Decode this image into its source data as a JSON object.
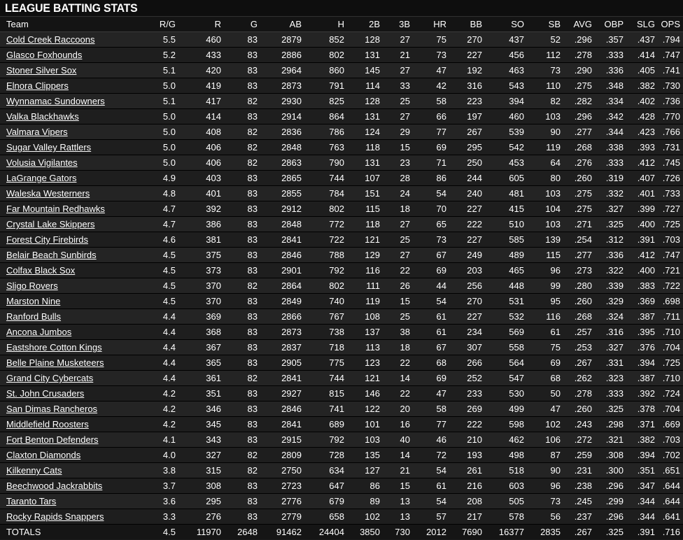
{
  "page": {
    "title": "LEAGUE BATTING STATS"
  },
  "table": {
    "columns": [
      "Team",
      "R/G",
      "R",
      "G",
      "AB",
      "H",
      "2B",
      "3B",
      "HR",
      "BB",
      "SO",
      "SB",
      "AVG",
      "OBP",
      "SLG",
      "OPS"
    ],
    "rows": [
      [
        "Cold Creek Raccoons",
        "5.5",
        "460",
        "83",
        "2879",
        "852",
        "128",
        "27",
        "75",
        "270",
        "437",
        "52",
        ".296",
        ".357",
        ".437",
        ".794"
      ],
      [
        "Glasco Foxhounds",
        "5.2",
        "433",
        "83",
        "2886",
        "802",
        "131",
        "21",
        "73",
        "227",
        "456",
        "112",
        ".278",
        ".333",
        ".414",
        ".747"
      ],
      [
        "Stoner Silver Sox",
        "5.1",
        "420",
        "83",
        "2964",
        "860",
        "145",
        "27",
        "47",
        "192",
        "463",
        "73",
        ".290",
        ".336",
        ".405",
        ".741"
      ],
      [
        "Elnora Clippers",
        "5.0",
        "419",
        "83",
        "2873",
        "791",
        "114",
        "33",
        "42",
        "316",
        "543",
        "110",
        ".275",
        ".348",
        ".382",
        ".730"
      ],
      [
        "Wynnamac Sundowners",
        "5.1",
        "417",
        "82",
        "2930",
        "825",
        "128",
        "25",
        "58",
        "223",
        "394",
        "82",
        ".282",
        ".334",
        ".402",
        ".736"
      ],
      [
        "Valka Blackhawks",
        "5.0",
        "414",
        "83",
        "2914",
        "864",
        "131",
        "27",
        "66",
        "197",
        "460",
        "103",
        ".296",
        ".342",
        ".428",
        ".770"
      ],
      [
        "Valmara Vipers",
        "5.0",
        "408",
        "82",
        "2836",
        "786",
        "124",
        "29",
        "77",
        "267",
        "539",
        "90",
        ".277",
        ".344",
        ".423",
        ".766"
      ],
      [
        "Sugar Valley Rattlers",
        "5.0",
        "406",
        "82",
        "2848",
        "763",
        "118",
        "15",
        "69",
        "295",
        "542",
        "119",
        ".268",
        ".338",
        ".393",
        ".731"
      ],
      [
        "Volusia Vigilantes",
        "5.0",
        "406",
        "82",
        "2863",
        "790",
        "131",
        "23",
        "71",
        "250",
        "453",
        "64",
        ".276",
        ".333",
        ".412",
        ".745"
      ],
      [
        "LaGrange Gators",
        "4.9",
        "403",
        "83",
        "2865",
        "744",
        "107",
        "28",
        "86",
        "244",
        "605",
        "80",
        ".260",
        ".319",
        ".407",
        ".726"
      ],
      [
        "Waleska Westerners",
        "4.8",
        "401",
        "83",
        "2855",
        "784",
        "151",
        "24",
        "54",
        "240",
        "481",
        "103",
        ".275",
        ".332",
        ".401",
        ".733"
      ],
      [
        "Far Mountain Redhawks",
        "4.7",
        "392",
        "83",
        "2912",
        "802",
        "115",
        "18",
        "70",
        "227",
        "415",
        "104",
        ".275",
        ".327",
        ".399",
        ".727"
      ],
      [
        "Crystal Lake Skippers",
        "4.7",
        "386",
        "83",
        "2848",
        "772",
        "118",
        "27",
        "65",
        "222",
        "510",
        "103",
        ".271",
        ".325",
        ".400",
        ".725"
      ],
      [
        "Forest City Firebirds",
        "4.6",
        "381",
        "83",
        "2841",
        "722",
        "121",
        "25",
        "73",
        "227",
        "585",
        "139",
        ".254",
        ".312",
        ".391",
        ".703"
      ],
      [
        "Belair Beach Sunbirds",
        "4.5",
        "375",
        "83",
        "2846",
        "788",
        "129",
        "27",
        "67",
        "249",
        "489",
        "115",
        ".277",
        ".336",
        ".412",
        ".747"
      ],
      [
        "Colfax Black Sox",
        "4.5",
        "373",
        "83",
        "2901",
        "792",
        "116",
        "22",
        "69",
        "203",
        "465",
        "96",
        ".273",
        ".322",
        ".400",
        ".721"
      ],
      [
        "Sligo Rovers",
        "4.5",
        "370",
        "82",
        "2864",
        "802",
        "111",
        "26",
        "44",
        "256",
        "448",
        "99",
        ".280",
        ".339",
        ".383",
        ".722"
      ],
      [
        "Marston Nine",
        "4.5",
        "370",
        "83",
        "2849",
        "740",
        "119",
        "15",
        "54",
        "270",
        "531",
        "95",
        ".260",
        ".329",
        ".369",
        ".698"
      ],
      [
        "Ranford Bulls",
        "4.4",
        "369",
        "83",
        "2866",
        "767",
        "108",
        "25",
        "61",
        "227",
        "532",
        "116",
        ".268",
        ".324",
        ".387",
        ".711"
      ],
      [
        "Ancona Jumbos",
        "4.4",
        "368",
        "83",
        "2873",
        "738",
        "137",
        "38",
        "61",
        "234",
        "569",
        "61",
        ".257",
        ".316",
        ".395",
        ".710"
      ],
      [
        "Eastshore Cotton Kings",
        "4.4",
        "367",
        "83",
        "2837",
        "718",
        "113",
        "18",
        "67",
        "307",
        "558",
        "75",
        ".253",
        ".327",
        ".376",
        ".704"
      ],
      [
        "Belle Plaine Musketeers",
        "4.4",
        "365",
        "83",
        "2905",
        "775",
        "123",
        "22",
        "68",
        "266",
        "564",
        "69",
        ".267",
        ".331",
        ".394",
        ".725"
      ],
      [
        "Grand City Cybercats",
        "4.4",
        "361",
        "82",
        "2841",
        "744",
        "121",
        "14",
        "69",
        "252",
        "547",
        "68",
        ".262",
        ".323",
        ".387",
        ".710"
      ],
      [
        "St. John Crusaders",
        "4.2",
        "351",
        "83",
        "2927",
        "815",
        "146",
        "22",
        "47",
        "233",
        "530",
        "50",
        ".278",
        ".333",
        ".392",
        ".724"
      ],
      [
        "San Dimas Rancheros",
        "4.2",
        "346",
        "83",
        "2846",
        "741",
        "122",
        "20",
        "58",
        "269",
        "499",
        "47",
        ".260",
        ".325",
        ".378",
        ".704"
      ],
      [
        "Middlefield Roosters",
        "4.2",
        "345",
        "83",
        "2841",
        "689",
        "101",
        "16",
        "77",
        "222",
        "598",
        "102",
        ".243",
        ".298",
        ".371",
        ".669"
      ],
      [
        "Fort Benton Defenders",
        "4.1",
        "343",
        "83",
        "2915",
        "792",
        "103",
        "40",
        "46",
        "210",
        "462",
        "106",
        ".272",
        ".321",
        ".382",
        ".703"
      ],
      [
        "Claxton Diamonds",
        "4.0",
        "327",
        "82",
        "2809",
        "728",
        "135",
        "14",
        "72",
        "193",
        "498",
        "87",
        ".259",
        ".308",
        ".394",
        ".702"
      ],
      [
        "Kilkenny Cats",
        "3.8",
        "315",
        "82",
        "2750",
        "634",
        "127",
        "21",
        "54",
        "261",
        "518",
        "90",
        ".231",
        ".300",
        ".351",
        ".651"
      ],
      [
        "Beechwood Jackrabbits",
        "3.7",
        "308",
        "83",
        "2723",
        "647",
        "86",
        "15",
        "61",
        "216",
        "603",
        "96",
        ".238",
        ".296",
        ".347",
        ".644"
      ],
      [
        "Taranto Tars",
        "3.6",
        "295",
        "83",
        "2776",
        "679",
        "89",
        "13",
        "54",
        "208",
        "505",
        "73",
        ".245",
        ".299",
        ".344",
        ".644"
      ],
      [
        "Rocky Rapids Snappers",
        "3.3",
        "276",
        "83",
        "2779",
        "658",
        "102",
        "13",
        "57",
        "217",
        "578",
        "56",
        ".237",
        ".296",
        ".344",
        ".641"
      ]
    ],
    "totals": [
      "TOTALS",
      "4.5",
      "11970",
      "2648",
      "91462",
      "24404",
      "3850",
      "730",
      "2012",
      "7690",
      "16377",
      "2835",
      ".267",
      ".325",
      ".391",
      ".716"
    ]
  }
}
